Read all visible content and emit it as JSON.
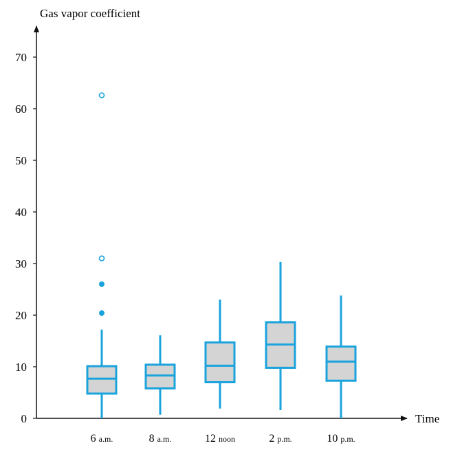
{
  "chart_data": {
    "type": "box",
    "ylabel": "Gas vapor coefficient",
    "xlabel": "Time",
    "ylim": [
      0,
      70
    ],
    "yticks": [
      0,
      10,
      20,
      30,
      40,
      50,
      60,
      70
    ],
    "box_color": "#1aa3dc",
    "box_fill": "#d4d4d4",
    "categories": [
      {
        "main": "6",
        "sub": "a.m."
      },
      {
        "main": "8",
        "sub": "a.m."
      },
      {
        "main": "12",
        "sub": "noon"
      },
      {
        "main": "2",
        "sub": "p.m."
      },
      {
        "main": "10",
        "sub": "p.m."
      }
    ],
    "boxes": [
      {
        "whisker_low": 0.0,
        "q1": 4.8,
        "median": 7.7,
        "q3": 10.1,
        "whisker_high": 17.2,
        "mild_outliers": [
          20.4,
          26.0
        ],
        "extreme_outliers": [
          31.0,
          62.6
        ]
      },
      {
        "whisker_low": 0.7,
        "q1": 5.8,
        "median": 8.3,
        "q3": 10.4,
        "whisker_high": 16.1,
        "mild_outliers": [],
        "extreme_outliers": []
      },
      {
        "whisker_low": 1.9,
        "q1": 7.0,
        "median": 10.2,
        "q3": 14.7,
        "whisker_high": 23.0,
        "mild_outliers": [],
        "extreme_outliers": []
      },
      {
        "whisker_low": 1.6,
        "q1": 9.8,
        "median": 14.3,
        "q3": 18.6,
        "whisker_high": 30.3,
        "mild_outliers": [],
        "extreme_outliers": []
      },
      {
        "whisker_low": 0.0,
        "q1": 7.3,
        "median": 11.0,
        "q3": 13.9,
        "whisker_high": 23.8,
        "mild_outliers": [],
        "extreme_outliers": []
      }
    ]
  }
}
